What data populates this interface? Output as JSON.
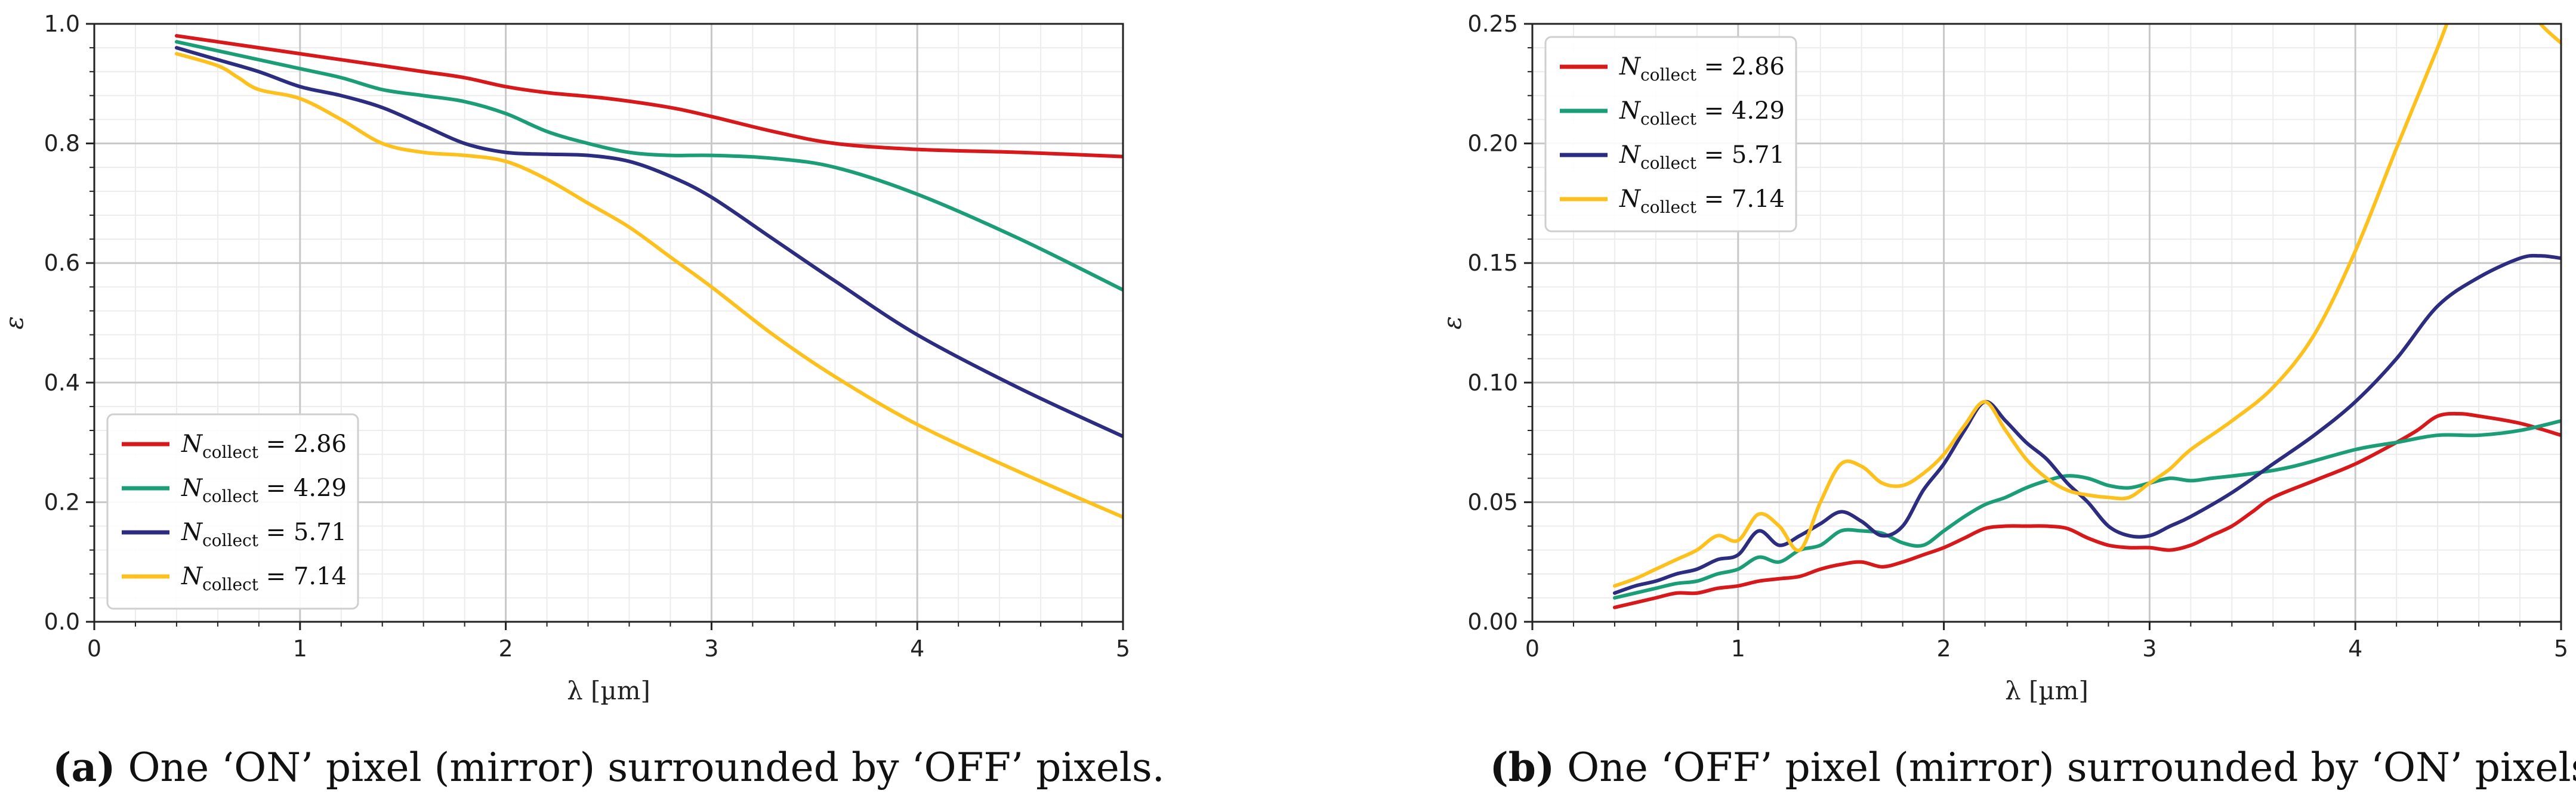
{
  "colors": {
    "red": "#d7191c",
    "green": "#1b9e77",
    "navy": "#2c2c80",
    "gold": "#fdc01c"
  },
  "chart_data": [
    {
      "type": "line",
      "panel": "a",
      "xlabel": "λ [µm]",
      "ylabel": "ε",
      "xlim": [
        0,
        5
      ],
      "ylim": [
        0,
        1.0
      ],
      "xticks": [
        "0",
        "1",
        "2",
        "3",
        "4",
        "5"
      ],
      "yticks": [
        "0.0",
        "0.2",
        "0.4",
        "0.6",
        "0.8",
        "1.0"
      ],
      "grid": true,
      "legend_position": "lower-left",
      "caption_label": "(a)",
      "caption_text": " One ‘ON’ pixel (mirror) surrounded by ‘OFF’ pixels.",
      "series": [
        {
          "name": "N_collect = 2.86",
          "value_label": "2.86",
          "color": "#d7191c",
          "x": [
            0.4,
            0.6,
            0.8,
            1.0,
            1.2,
            1.4,
            1.6,
            1.8,
            2.0,
            2.2,
            2.5,
            2.8,
            3.0,
            3.3,
            3.6,
            4.0,
            4.5,
            5.0
          ],
          "y": [
            0.98,
            0.97,
            0.96,
            0.95,
            0.94,
            0.93,
            0.92,
            0.91,
            0.895,
            0.885,
            0.875,
            0.86,
            0.845,
            0.82,
            0.8,
            0.79,
            0.785,
            0.778
          ]
        },
        {
          "name": "N_collect = 4.29",
          "value_label": "4.29",
          "color": "#1b9e77",
          "x": [
            0.4,
            0.6,
            0.8,
            1.0,
            1.2,
            1.4,
            1.6,
            1.8,
            2.0,
            2.2,
            2.4,
            2.6,
            2.8,
            3.0,
            3.3,
            3.6,
            4.0,
            4.5,
            5.0
          ],
          "y": [
            0.97,
            0.955,
            0.94,
            0.925,
            0.91,
            0.89,
            0.88,
            0.87,
            0.85,
            0.82,
            0.8,
            0.785,
            0.78,
            0.78,
            0.775,
            0.76,
            0.715,
            0.64,
            0.555
          ]
        },
        {
          "name": "N_collect = 5.71",
          "value_label": "5.71",
          "color": "#2c2c80",
          "x": [
            0.4,
            0.6,
            0.8,
            1.0,
            1.2,
            1.4,
            1.6,
            1.8,
            2.0,
            2.2,
            2.4,
            2.6,
            2.8,
            3.0,
            3.3,
            3.6,
            4.0,
            4.5,
            5.0
          ],
          "y": [
            0.96,
            0.94,
            0.92,
            0.895,
            0.88,
            0.86,
            0.83,
            0.8,
            0.785,
            0.782,
            0.78,
            0.77,
            0.745,
            0.71,
            0.64,
            0.57,
            0.48,
            0.39,
            0.31
          ]
        },
        {
          "name": "N_collect = 7.14",
          "value_label": "7.14",
          "color": "#fdc01c",
          "x": [
            0.4,
            0.6,
            0.7,
            0.8,
            1.0,
            1.2,
            1.4,
            1.6,
            1.8,
            2.0,
            2.2,
            2.4,
            2.6,
            2.8,
            3.0,
            3.3,
            3.6,
            4.0,
            4.5,
            5.0
          ],
          "y": [
            0.95,
            0.93,
            0.91,
            0.89,
            0.875,
            0.84,
            0.8,
            0.785,
            0.78,
            0.77,
            0.74,
            0.7,
            0.66,
            0.61,
            0.56,
            0.48,
            0.41,
            0.33,
            0.25,
            0.175
          ]
        }
      ]
    },
    {
      "type": "line",
      "panel": "b",
      "xlabel": "λ [µm]",
      "ylabel": "ε",
      "xlim": [
        0,
        5
      ],
      "ylim": [
        0,
        0.25
      ],
      "xticks": [
        "0",
        "1",
        "2",
        "3",
        "4",
        "5"
      ],
      "yticks": [
        "0.00",
        "0.05",
        "0.10",
        "0.15",
        "0.20",
        "0.25"
      ],
      "grid": true,
      "legend_position": "top-left",
      "caption_label": "(b)",
      "caption_text": " One ‘OFF’ pixel (mirror) surrounded by ‘ON’ pixels.",
      "series": [
        {
          "name": "N_collect = 2.86",
          "value_label": "2.86",
          "color": "#d7191c",
          "x": [
            0.4,
            0.5,
            0.6,
            0.7,
            0.8,
            0.9,
            1.0,
            1.1,
            1.2,
            1.3,
            1.4,
            1.5,
            1.6,
            1.7,
            1.8,
            1.9,
            2.0,
            2.1,
            2.2,
            2.3,
            2.4,
            2.5,
            2.6,
            2.7,
            2.8,
            2.9,
            3.0,
            3.1,
            3.2,
            3.3,
            3.4,
            3.5,
            3.6,
            3.8,
            4.0,
            4.2,
            4.3,
            4.4,
            4.5,
            4.6,
            4.8,
            5.0
          ],
          "y": [
            0.006,
            0.008,
            0.01,
            0.012,
            0.012,
            0.014,
            0.015,
            0.017,
            0.018,
            0.019,
            0.022,
            0.024,
            0.025,
            0.023,
            0.025,
            0.028,
            0.031,
            0.035,
            0.039,
            0.04,
            0.04,
            0.04,
            0.039,
            0.035,
            0.032,
            0.031,
            0.031,
            0.03,
            0.032,
            0.036,
            0.04,
            0.046,
            0.052,
            0.059,
            0.066,
            0.075,
            0.08,
            0.086,
            0.087,
            0.086,
            0.083,
            0.078
          ]
        },
        {
          "name": "N_collect = 4.29",
          "value_label": "4.29",
          "color": "#1b9e77",
          "x": [
            0.4,
            0.5,
            0.6,
            0.7,
            0.8,
            0.9,
            1.0,
            1.1,
            1.2,
            1.3,
            1.4,
            1.5,
            1.6,
            1.7,
            1.8,
            1.9,
            2.0,
            2.1,
            2.2,
            2.3,
            2.4,
            2.5,
            2.6,
            2.7,
            2.8,
            2.9,
            3.0,
            3.1,
            3.2,
            3.3,
            3.5,
            3.7,
            4.0,
            4.2,
            4.4,
            4.6,
            4.8,
            5.0
          ],
          "y": [
            0.01,
            0.012,
            0.014,
            0.016,
            0.017,
            0.02,
            0.022,
            0.027,
            0.025,
            0.03,
            0.032,
            0.038,
            0.038,
            0.037,
            0.033,
            0.032,
            0.038,
            0.044,
            0.049,
            0.052,
            0.056,
            0.059,
            0.061,
            0.06,
            0.057,
            0.056,
            0.058,
            0.06,
            0.059,
            0.06,
            0.062,
            0.065,
            0.072,
            0.075,
            0.078,
            0.078,
            0.08,
            0.084
          ]
        },
        {
          "name": "N_collect = 5.71",
          "value_label": "5.71",
          "color": "#2c2c80",
          "x": [
            0.4,
            0.5,
            0.6,
            0.7,
            0.8,
            0.9,
            1.0,
            1.1,
            1.2,
            1.3,
            1.4,
            1.5,
            1.6,
            1.7,
            1.8,
            1.9,
            2.0,
            2.1,
            2.2,
            2.3,
            2.4,
            2.5,
            2.6,
            2.7,
            2.8,
            2.9,
            3.0,
            3.1,
            3.2,
            3.4,
            3.6,
            3.8,
            4.0,
            4.2,
            4.4,
            4.6,
            4.8,
            4.9,
            5.0
          ],
          "y": [
            0.012,
            0.015,
            0.017,
            0.02,
            0.022,
            0.026,
            0.028,
            0.038,
            0.032,
            0.036,
            0.041,
            0.046,
            0.042,
            0.036,
            0.04,
            0.055,
            0.066,
            0.08,
            0.092,
            0.084,
            0.075,
            0.068,
            0.058,
            0.05,
            0.04,
            0.036,
            0.036,
            0.04,
            0.044,
            0.054,
            0.066,
            0.078,
            0.092,
            0.11,
            0.132,
            0.144,
            0.152,
            0.153,
            0.152
          ]
        },
        {
          "name": "N_collect = 7.14",
          "value_label": "7.14",
          "color": "#fdc01c",
          "x": [
            0.4,
            0.5,
            0.6,
            0.7,
            0.8,
            0.9,
            1.0,
            1.1,
            1.2,
            1.3,
            1.4,
            1.5,
            1.6,
            1.7,
            1.8,
            1.9,
            2.0,
            2.1,
            2.2,
            2.3,
            2.4,
            2.5,
            2.6,
            2.7,
            2.8,
            2.9,
            3.0,
            3.1,
            3.2,
            3.4,
            3.6,
            3.8,
            4.0,
            4.2,
            4.4,
            4.5,
            4.6,
            4.7,
            4.8,
            4.9,
            5.0
          ],
          "y": [
            0.015,
            0.018,
            0.022,
            0.026,
            0.03,
            0.036,
            0.034,
            0.045,
            0.04,
            0.03,
            0.05,
            0.066,
            0.065,
            0.058,
            0.057,
            0.062,
            0.07,
            0.082,
            0.092,
            0.08,
            0.068,
            0.06,
            0.055,
            0.053,
            0.052,
            0.052,
            0.058,
            0.064,
            0.072,
            0.084,
            0.098,
            0.12,
            0.155,
            0.198,
            0.24,
            0.262,
            0.275,
            0.275,
            0.262,
            0.25,
            0.242
          ]
        }
      ]
    }
  ]
}
